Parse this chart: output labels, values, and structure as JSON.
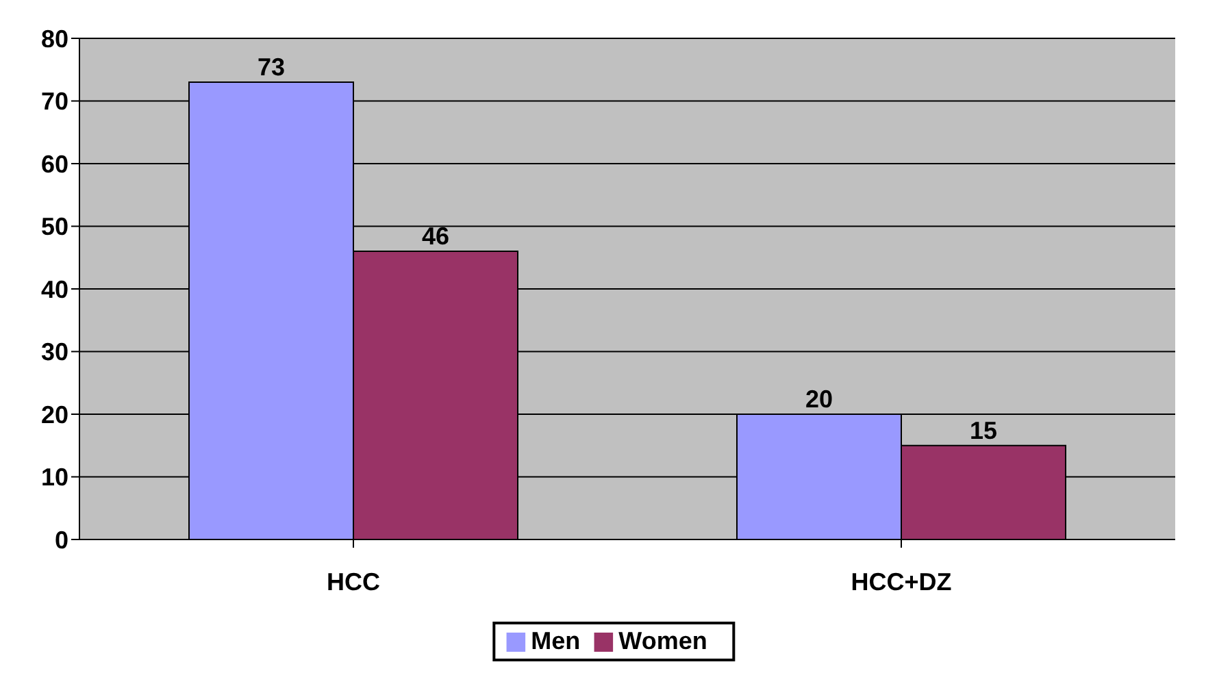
{
  "chart_data": {
    "type": "bar",
    "categories": [
      "HCC",
      "HCC+DZ"
    ],
    "series": [
      {
        "name": "Men",
        "color": "#9999ff",
        "values": [
          73,
          20
        ]
      },
      {
        "name": "Women",
        "color": "#993366",
        "values": [
          46,
          15
        ]
      }
    ],
    "ylim": [
      0,
      80
    ],
    "yticks": [
      0,
      10,
      20,
      30,
      40,
      50,
      60,
      70,
      80
    ],
    "grid": "y",
    "legend": "bottom",
    "data_labels": true
  }
}
